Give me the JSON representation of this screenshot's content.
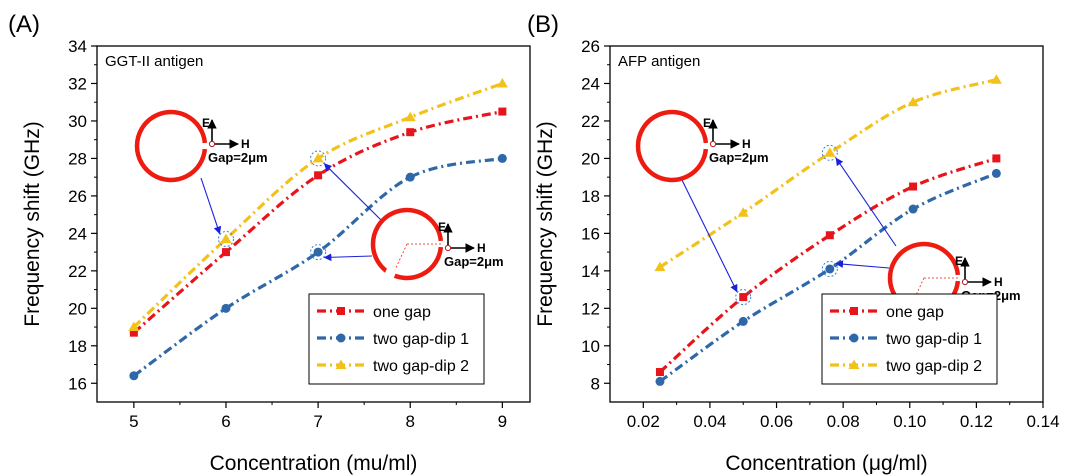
{
  "colors": {
    "one_gap": "#e8141b",
    "dip1": "#2f68a8",
    "dip2": "#f2c11a",
    "ring": "#ee1c10",
    "arrow": "#1a21d8",
    "axis": "#000000",
    "text": "#000000"
  },
  "chart_data": [
    {
      "type": "line",
      "panel_label": "(A)",
      "annotation": "GGT-II antigen",
      "xlabel": "Concentration (mu/ml)",
      "ylabel": "Frequency shift (GHz)",
      "xlim": [
        4.6,
        9.3
      ],
      "ylim": [
        15,
        34
      ],
      "xticks": [
        5,
        6,
        7,
        8,
        9
      ],
      "yticks": [
        16,
        18,
        20,
        22,
        24,
        26,
        28,
        30,
        32,
        34
      ],
      "x": [
        5,
        6,
        7,
        8,
        9
      ],
      "series": [
        {
          "name": "one gap",
          "color": "#e8141b",
          "marker": "square",
          "values": [
            18.7,
            23.0,
            27.1,
            29.4,
            30.5
          ]
        },
        {
          "name": "two gap-dip 1",
          "color": "#2f68a8",
          "marker": "circle",
          "values": [
            16.4,
            20.0,
            23.0,
            27.0,
            28.0
          ]
        },
        {
          "name": "two gap-dip 2",
          "color": "#f2c11a",
          "marker": "triangle",
          "values": [
            19.0,
            23.7,
            28.0,
            30.2,
            32.0
          ]
        }
      ],
      "legend": "bottom-right",
      "insets": [
        {
          "e_label": "E",
          "h_label": "H",
          "gap_label": "Gap=2μm"
        },
        {
          "e_label": "E",
          "h_label": "H",
          "gap_label": "Gap=2μm"
        }
      ]
    },
    {
      "type": "line",
      "panel_label": "(B)",
      "annotation": "AFP antigen",
      "xlabel": "Concentration (μg/ml)",
      "ylabel": "Frequency shift (GHz)",
      "xlim": [
        0.01,
        0.14
      ],
      "ylim": [
        7,
        26
      ],
      "xticks": [
        0.02,
        0.04,
        0.06,
        0.08,
        0.1,
        0.12,
        0.14
      ],
      "xtick_labels": [
        "0.02",
        "0.04",
        "0.06",
        "0.08",
        "0.10",
        "0.12",
        "0.14"
      ],
      "yticks": [
        8,
        10,
        12,
        14,
        16,
        18,
        20,
        22,
        24,
        26
      ],
      "x": [
        0.025,
        0.05,
        0.076,
        0.101,
        0.126
      ],
      "series": [
        {
          "name": "one gap",
          "color": "#e8141b",
          "marker": "square",
          "values": [
            8.6,
            12.6,
            15.9,
            18.5,
            20.0
          ]
        },
        {
          "name": "two gap-dip 1",
          "color": "#2f68a8",
          "marker": "circle",
          "values": [
            8.1,
            11.3,
            14.1,
            17.3,
            19.2
          ]
        },
        {
          "name": "two gap-dip 2",
          "color": "#f2c11a",
          "marker": "triangle",
          "values": [
            14.2,
            17.1,
            20.3,
            23.0,
            24.2
          ]
        }
      ],
      "legend": "bottom-right",
      "insets": [
        {
          "e_label": "E",
          "h_label": "H",
          "gap_label": "Gap=2μm"
        },
        {
          "e_label": "E",
          "h_label": "H",
          "gap_label": "Gap=2μm"
        }
      ]
    }
  ]
}
